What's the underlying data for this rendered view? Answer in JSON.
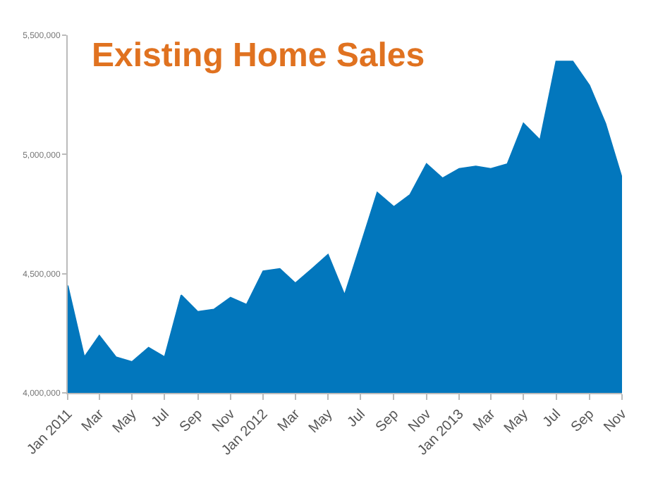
{
  "chart_data": {
    "type": "area",
    "title": "Existing Home Sales",
    "x": [
      "2011-01",
      "2011-02",
      "2011-03",
      "2011-04",
      "2011-05",
      "2011-06",
      "2011-07",
      "2011-08",
      "2011-09",
      "2011-10",
      "2011-11",
      "2011-12",
      "2012-01",
      "2012-02",
      "2012-03",
      "2012-04",
      "2012-05",
      "2012-06",
      "2012-07",
      "2012-08",
      "2012-09",
      "2012-10",
      "2012-11",
      "2012-12",
      "2013-01",
      "2013-02",
      "2013-03",
      "2013-04",
      "2013-05",
      "2013-06",
      "2013-07",
      "2013-08",
      "2013-09",
      "2013-10",
      "2013-11"
    ],
    "series": [
      {
        "color": "#0277bd",
        "values": [
          4450000,
          4150000,
          4240000,
          4150000,
          4130000,
          4190000,
          4150000,
          4410000,
          4340000,
          4350000,
          4400000,
          4370000,
          4510000,
          4520000,
          4460000,
          4520000,
          4580000,
          4410000,
          4620000,
          4840000,
          4780000,
          4830000,
          4960000,
          4900000,
          4940000,
          4950000,
          4940000,
          4960000,
          5130000,
          5060000,
          5390000,
          5390000,
          5290000,
          5130000,
          4900000
        ]
      }
    ],
    "xlim": [
      "2011-01",
      "2013-11"
    ],
    "xticks": [
      {
        "value": "2011-01",
        "label": "Jan 2011"
      },
      {
        "value": "2011-03",
        "label": "Mar"
      },
      {
        "value": "2011-05",
        "label": "May"
      },
      {
        "value": "2011-07",
        "label": "Jul"
      },
      {
        "value": "2011-09",
        "label": "Sep"
      },
      {
        "value": "2011-11",
        "label": "Nov"
      },
      {
        "value": "2012-01",
        "label": "Jan 2012"
      },
      {
        "value": "2012-03",
        "label": "Mar"
      },
      {
        "value": "2012-05",
        "label": "May"
      },
      {
        "value": "2012-07",
        "label": "Jul"
      },
      {
        "value": "2012-09",
        "label": "Sep"
      },
      {
        "value": "2012-11",
        "label": "Nov"
      },
      {
        "value": "2013-01",
        "label": "Jan 2013"
      },
      {
        "value": "2013-03",
        "label": "Mar"
      },
      {
        "value": "2013-05",
        "label": "May"
      },
      {
        "value": "2013-07",
        "label": "Jul"
      },
      {
        "value": "2013-09",
        "label": "Sep"
      },
      {
        "value": "2013-11",
        "label": "Nov"
      }
    ],
    "ylim": [
      4000000,
      5500000
    ],
    "yticks": [
      {
        "value": 4000000,
        "label": "4,000,000"
      },
      {
        "value": 4500000,
        "label": "4,500,000"
      },
      {
        "value": 5000000,
        "label": "5,000,000"
      },
      {
        "value": 5500000,
        "label": "5,500,000"
      }
    ],
    "ylabel": null
  }
}
